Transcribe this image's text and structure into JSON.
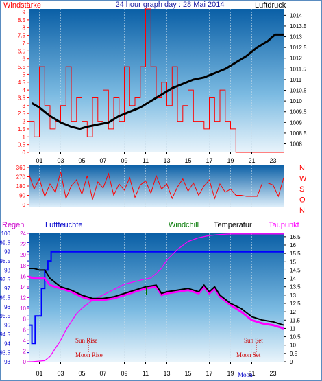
{
  "title": "24 hour graph day : 28 Mai 2014",
  "colors": {
    "wind": "#ff0000",
    "pressure": "#000000",
    "humidity": "#0000ff",
    "windchill": "#007700",
    "temperature": "#000000",
    "dewpoint": "#ff00ff",
    "rain": "#ff00ff"
  },
  "chart_data": [
    {
      "type": "line",
      "label_left": "Windstärke",
      "label_right": "Luftdruck",
      "x_ticks": [
        "01",
        "03",
        "05",
        "07",
        "09",
        "11",
        "13",
        "15",
        "17",
        "19",
        "21",
        "23"
      ],
      "y_left": {
        "ticks": [
          "0",
          "0.5",
          "1",
          "1.5",
          "2",
          "2.5",
          "3",
          "3.5",
          "4",
          "4.5",
          "5",
          "5.5",
          "6",
          "6.5",
          "7",
          "7.5",
          "8",
          "8.5",
          "9"
        ],
        "ylim": [
          0,
          9.2
        ]
      },
      "y_right": {
        "ticks": [
          "1008",
          "1008.5",
          "1009",
          "1009.5",
          "1010",
          "1010.5",
          "1011",
          "1011.5",
          "1012",
          "1012.5",
          "1013",
          "1013.5",
          "1014"
        ],
        "ylim": [
          1007.6,
          1014.3
        ]
      },
      "series": [
        {
          "name": "Luftdruck",
          "axis": "right",
          "x": [
            0.3,
            1,
            2,
            3,
            4,
            4.8,
            5.5,
            6.5,
            7.5,
            8.5,
            9.5,
            10.5,
            11.5,
            12.5,
            13.5,
            14.5,
            15.5,
            16.5,
            17.5,
            18.5,
            19.5,
            20.5,
            21.5,
            22.5,
            23.2,
            24
          ],
          "y": [
            1009.9,
            1009.7,
            1009.3,
            1009.0,
            1008.8,
            1008.7,
            1008.8,
            1008.9,
            1009.0,
            1009.3,
            1009.5,
            1009.7,
            1010.0,
            1010.3,
            1010.6,
            1010.8,
            1011.0,
            1011.1,
            1011.3,
            1011.5,
            1011.8,
            1012.1,
            1012.5,
            1012.8,
            1013.1,
            1013.1
          ]
        },
        {
          "name": "Windstärke",
          "axis": "left",
          "x": [
            0,
            0.5,
            1,
            1.5,
            2,
            2.5,
            3,
            3.5,
            4,
            4.5,
            5,
            5.5,
            6,
            6.5,
            7,
            7.5,
            8,
            8.5,
            9,
            9.5,
            10,
            10.5,
            11,
            11.5,
            12,
            12.5,
            13,
            13.5,
            14,
            14.5,
            15,
            15.5,
            16,
            16.5,
            17,
            17.5,
            18,
            18.5,
            19,
            19.5,
            20,
            21,
            22,
            23,
            24
          ],
          "y": [
            2,
            1,
            5.5,
            3,
            1.5,
            2,
            3,
            5.5,
            2,
            3.5,
            2,
            1,
            3.5,
            2,
            4,
            1.5,
            3.5,
            2,
            5.5,
            3,
            3.5,
            5.5,
            9.2,
            5.5,
            3.5,
            4.5,
            3,
            5.5,
            2,
            3,
            4,
            2,
            2,
            1.5,
            3.5,
            2,
            4,
            2,
            1.5,
            0,
            0,
            0,
            0,
            0,
            0
          ]
        }
      ]
    },
    {
      "type": "line",
      "label_right": [
        "N",
        "W",
        "S",
        "O",
        "N"
      ],
      "x_ticks": [
        "01",
        "03",
        "05",
        "07",
        "09",
        "11",
        "13",
        "15",
        "17",
        "19",
        "21",
        "23"
      ],
      "y_left": {
        "ticks": [
          "0",
          "90",
          "180",
          "270",
          "360"
        ],
        "ylim": [
          0,
          360
        ]
      },
      "series": [
        {
          "name": "Windrichtung",
          "x": [
            0,
            0.5,
            1,
            1.5,
            2,
            2.5,
            3,
            3.5,
            4,
            4.5,
            5,
            5.5,
            6,
            6.5,
            7,
            7.5,
            8,
            8.5,
            9,
            9.5,
            10,
            10.5,
            11,
            11.5,
            12,
            12.5,
            13,
            13.5,
            14,
            14.5,
            15,
            15.5,
            16,
            16.5,
            17,
            17.5,
            18,
            18.5,
            19,
            19.5,
            20,
            20.5,
            21,
            21.5,
            22,
            22.5,
            23,
            23.5,
            24
          ],
          "y": [
            300,
            150,
            250,
            80,
            200,
            120,
            320,
            60,
            180,
            240,
            100,
            280,
            50,
            220,
            160,
            300,
            90,
            200,
            140,
            260,
            70,
            190,
            230,
            110,
            280,
            150,
            200,
            60,
            170,
            250,
            130,
            210,
            90,
            180,
            240,
            60,
            200,
            120,
            150,
            90,
            90,
            80,
            80,
            80,
            210,
            210,
            190,
            80,
            260
          ]
        }
      ]
    },
    {
      "type": "line",
      "labels": {
        "regen": "Regen",
        "luftfeuchte": "Luftfeuchte",
        "windchill": "Windchill",
        "temperatur": "Temperatur",
        "taupunkt": "Taupunkt"
      },
      "x_ticks": [
        "01",
        "03",
        "05",
        "07",
        "09",
        "11",
        "13",
        "15",
        "17",
        "19",
        "21",
        "23"
      ],
      "annotations": {
        "sun_rise": "Sun Rise",
        "moon_rise": "Moon Rise",
        "sun_set": "Sun Set",
        "moon_set": "Moon Set",
        "moon_label": "Moon"
      },
      "y_humidity": {
        "ticks": [
          "93",
          "93.5",
          "94",
          "94.5",
          "95",
          "95.5",
          "96",
          "96.5",
          "97",
          "97.5",
          "98",
          "98.5",
          "99",
          "99.5",
          "100"
        ],
        "ylim": [
          93,
          100
        ]
      },
      "y_rain": {
        "ticks": [
          "0",
          "2",
          "4",
          "6",
          "8",
          "10",
          "12",
          "14",
          "16",
          "18",
          "20",
          "22",
          "24"
        ],
        "ylim": [
          0,
          24
        ]
      },
      "y_temp": {
        "ticks": [
          "9",
          "9.5",
          "10",
          "10.5",
          "11",
          "11.5",
          "12",
          "12.5",
          "13",
          "13.5",
          "14",
          "14.5",
          "15",
          "15.5",
          "16",
          "16.5"
        ],
        "ylim": [
          9,
          16.7
        ]
      },
      "series": [
        {
          "name": "Luftfeuchte",
          "axis": "humidity",
          "x": [
            0,
            0.3,
            0.3,
            0.6,
            0.6,
            1.2,
            1.2,
            1.5,
            1.5,
            1.8,
            1.8,
            2.1,
            2.1,
            24
          ],
          "y": [
            95,
            95,
            94,
            94,
            95.5,
            95.5,
            97,
            97,
            98,
            98,
            98.5,
            98.5,
            99,
            99
          ]
        },
        {
          "name": "Temperatur",
          "axis": "temp",
          "x": [
            0,
            0.5,
            1,
            1.5,
            2,
            3,
            4,
            5,
            6,
            7,
            8,
            9,
            10,
            11,
            12,
            12.5,
            13,
            14,
            15,
            16,
            16.5,
            17,
            17.5,
            18,
            19,
            20,
            21,
            22,
            23,
            24
          ],
          "y": [
            14.6,
            14.6,
            14.5,
            14.5,
            14.0,
            13.5,
            13.3,
            13.0,
            12.8,
            12.8,
            12.9,
            13.1,
            13.3,
            13.5,
            13.6,
            13.1,
            13.2,
            13.3,
            13.4,
            13.2,
            13.6,
            13.2,
            13.5,
            13.0,
            12.5,
            12.2,
            11.7,
            11.5,
            11.4,
            11.2
          ]
        },
        {
          "name": "Taupunkt",
          "axis": "temp",
          "x": [
            0,
            0.5,
            1,
            1.5,
            2,
            3,
            4,
            5,
            6,
            7,
            8,
            9,
            10,
            11,
            12,
            12.5,
            13,
            14,
            15,
            16,
            16.5,
            17,
            17.5,
            18,
            19,
            20,
            21,
            22,
            23,
            24
          ],
          "y": [
            14.1,
            14.0,
            14.0,
            14.0,
            13.6,
            13.4,
            13.2,
            12.9,
            12.7,
            12.7,
            12.8,
            13.0,
            13.2,
            13.4,
            13.5,
            13.0,
            13.1,
            13.2,
            13.3,
            13.1,
            13.5,
            13.1,
            13.4,
            12.9,
            12.4,
            12.0,
            11.5,
            11.3,
            11.2,
            11.0
          ]
        },
        {
          "name": "Regen",
          "axis": "rain",
          "x": [
            0,
            0.3,
            1.5,
            2,
            3,
            3.5,
            4,
            4.5,
            5,
            6,
            7,
            8,
            9,
            10,
            11,
            11.5,
            12,
            12.5,
            13,
            14,
            15,
            16,
            17,
            18,
            19,
            20,
            24
          ],
          "y": [
            0,
            0,
            0.2,
            1,
            4,
            6,
            7.5,
            9,
            10,
            11.5,
            12.5,
            13.5,
            14.5,
            15,
            15.5,
            15.7,
            16.5,
            17.5,
            19,
            21,
            22.5,
            23.2,
            23.6,
            23.8,
            23.9,
            23.9,
            23.9
          ]
        },
        {
          "name": "Windchill",
          "axis": "temp",
          "x": [
            11.1,
            11.1
          ],
          "y": [
            13.0,
            13.5
          ]
        }
      ]
    }
  ]
}
